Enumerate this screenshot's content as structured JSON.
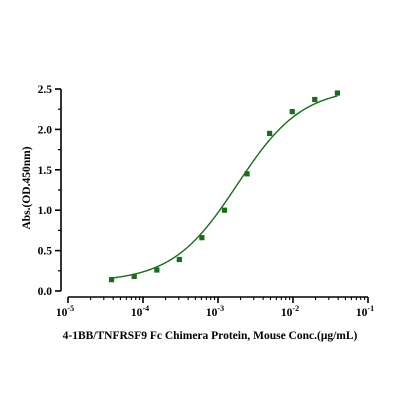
{
  "chart_data": {
    "type": "scatter",
    "xlabel": "4-1BB/TNFRSF9 Fc Chimera Protein, Mouse Conc.(μg/mL)",
    "ylabel": "Abs.(OD.450nm)",
    "x_scale": "log",
    "xlim": [
      1e-05,
      0.1
    ],
    "ylim": [
      0,
      2.5
    ],
    "x_ticks": [
      {
        "base": "10",
        "exp": "-5"
      },
      {
        "base": "10",
        "exp": "-4"
      },
      {
        "base": "10",
        "exp": "-3"
      },
      {
        "base": "10",
        "exp": "-2"
      },
      {
        "base": "10",
        "exp": "-1"
      }
    ],
    "y_ticks": [
      "0.0",
      "0.5",
      "1.0",
      "1.5",
      "2.0",
      "2.5"
    ],
    "grid": false,
    "legend": "none",
    "colors": {
      "series": "#1a6b1a",
      "axis": "#000000"
    },
    "series": [
      {
        "x": [
          3.81e-05,
          7.63e-05,
          0.000153,
          0.000305,
          0.00061,
          0.00122,
          0.00244,
          0.00488,
          0.00977,
          0.0195,
          0.0391
        ],
        "y": [
          0.14,
          0.18,
          0.26,
          0.39,
          0.66,
          1.0,
          1.45,
          1.95,
          2.22,
          2.37,
          2.45
        ],
        "fit": "4PL"
      }
    ],
    "fit_curve": {
      "bottom": 0.11,
      "top": 2.52,
      "ec50": 0.0018,
      "hill": 1.0
    }
  }
}
